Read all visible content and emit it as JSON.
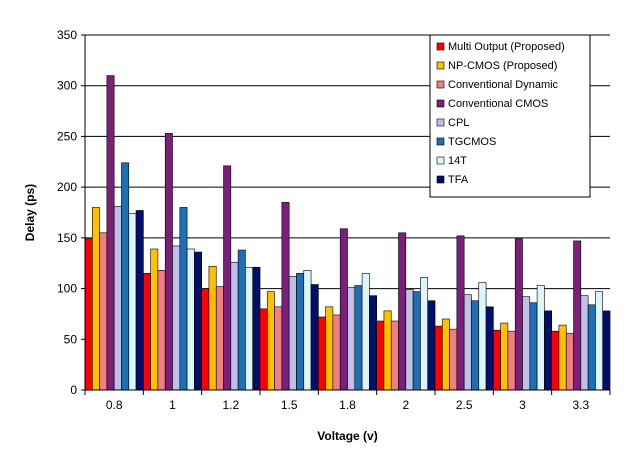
{
  "chart_data": {
    "type": "bar",
    "title": "",
    "xlabel": "Voltage (v)",
    "ylabel": "Delay (ps)",
    "ylim": [
      0,
      350
    ],
    "ytick_step": 50,
    "yticks": [
      "0",
      "50",
      "100",
      "150",
      "200",
      "250",
      "300",
      "350"
    ],
    "grid": "horizontal",
    "legend_position": "top-right",
    "categories": [
      "0.8",
      "1",
      "1.2",
      "1.5",
      "1.8",
      "2",
      "2.5",
      "3",
      "3.3"
    ],
    "series": [
      {
        "name": "Multi Output (Proposed)",
        "color": "#ff0000",
        "values": [
          149,
          115,
          100,
          80,
          72,
          68,
          63,
          59,
          58
        ]
      },
      {
        "name": "NP-CMOS (Proposed)",
        "color": "#ffc000",
        "values": [
          180,
          139,
          122,
          97,
          82,
          78,
          70,
          66,
          64
        ]
      },
      {
        "name": "Conventional Dynamic",
        "color": "#f08080",
        "values": [
          155,
          118,
          102,
          82,
          74,
          68,
          60,
          58,
          56
        ]
      },
      {
        "name": "Conventional CMOS",
        "color": "#7b1f7a",
        "values": [
          310,
          253,
          221,
          185,
          159,
          155,
          152,
          149,
          147
        ]
      },
      {
        "name": "CPL",
        "color": "#bfbfe8",
        "values": [
          181,
          142,
          126,
          112,
          101,
          99,
          94,
          92,
          93
        ]
      },
      {
        "name": "TGCMOS",
        "color": "#1f6fb5",
        "values": [
          224,
          180,
          138,
          115,
          103,
          97,
          88,
          86,
          84
        ]
      },
      {
        "name": "14T",
        "color": "#ddf4f8",
        "values": [
          174,
          139,
          121,
          118,
          115,
          111,
          106,
          103,
          97
        ]
      },
      {
        "name": "TFA",
        "color": "#000f6a",
        "values": [
          177,
          136,
          121,
          104,
          93,
          88,
          82,
          78,
          78
        ]
      }
    ]
  }
}
